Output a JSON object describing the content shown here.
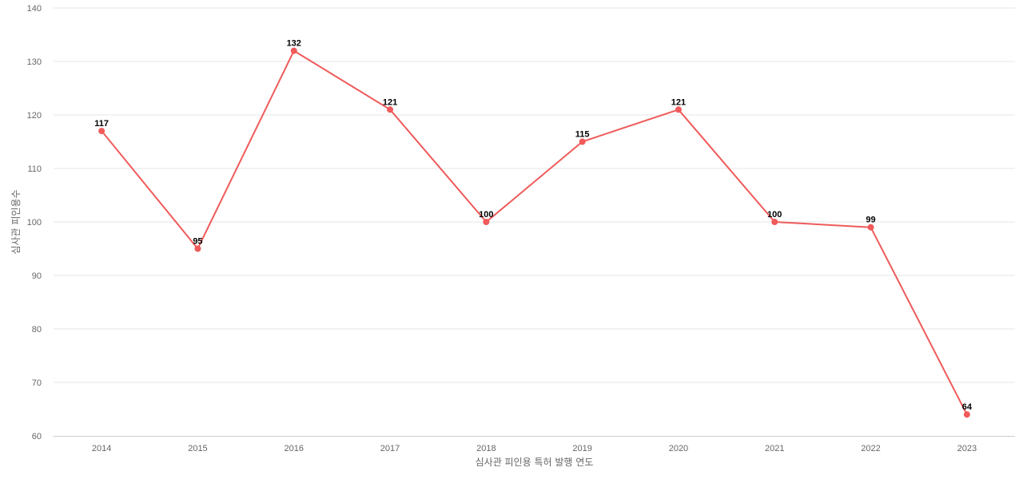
{
  "chart_data": {
    "type": "line",
    "title": "",
    "xlabel": "심사관 피인용 특허 발행 연도",
    "ylabel": "심사관 피인용수",
    "categories": [
      "2014",
      "2015",
      "2016",
      "2017",
      "2018",
      "2019",
      "2020",
      "2021",
      "2022",
      "2023"
    ],
    "series": [
      {
        "values": [
          117,
          95,
          132,
          121,
          100,
          115,
          121,
          100,
          99,
          64
        ],
        "color": "#f05a5a"
      }
    ],
    "ylim": [
      60,
      140
    ],
    "yticks": [
      60,
      70,
      80,
      90,
      100,
      110,
      120,
      130,
      140
    ],
    "grid": true,
    "data_labels": true,
    "legend": "none"
  }
}
